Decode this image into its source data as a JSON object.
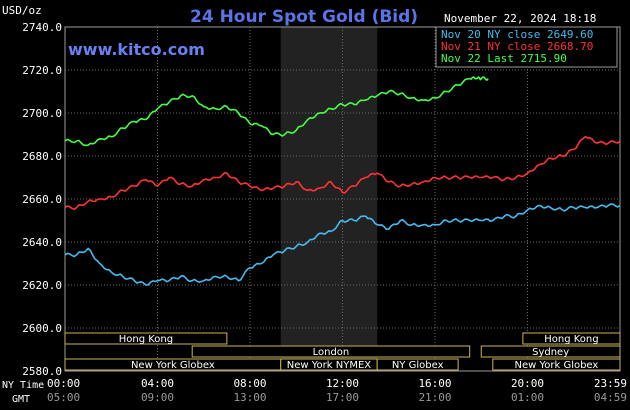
{
  "chart_data": {
    "type": "line",
    "title": "24 Hour Spot Gold (Bid)",
    "ylabel": "USD/oz",
    "timestamp": "November 22, 2024 18:18",
    "source": "www.kitco.com",
    "ylim": [
      2580,
      2740
    ],
    "yticks": [
      2580.0,
      2600.0,
      2620.0,
      2640.0,
      2660.0,
      2680.0,
      2700.0,
      2720.0,
      2740.0
    ],
    "xlim": [
      0,
      24
    ],
    "xticks_ny": [
      "00:00",
      "04:00",
      "08:00",
      "12:00",
      "16:00",
      "20:00",
      "23:59"
    ],
    "xticks_gmt": [
      "05:00",
      "09:00",
      "13:00",
      "17:00",
      "21:00",
      "01:00",
      "04:59"
    ],
    "xlabel_ny": "NY Time",
    "xlabel_gmt": "GMT",
    "nymex_session": [
      9.33,
      13.5
    ],
    "legend": [
      {
        "label": "Nov 20 NY close 2649.60",
        "color": "#44bbee"
      },
      {
        "label": "Nov 21 NY close 2668.70",
        "color": "#ff3333"
      },
      {
        "label": "Nov 22 Last 2715.90",
        "color": "#44ff44"
      }
    ],
    "series": [
      {
        "name": "Nov 20",
        "color": "#44bbee",
        "x": [
          0,
          0.5,
          1.0,
          1.5,
          2.0,
          2.5,
          3.0,
          3.5,
          4.0,
          4.5,
          5.0,
          5.5,
          6.0,
          6.5,
          7.0,
          7.5,
          8.0,
          8.5,
          9.0,
          9.5,
          10.0,
          10.5,
          11.0,
          11.5,
          12.0,
          12.5,
          13.0,
          13.5,
          14.0,
          14.5,
          15.0,
          15.5,
          16.0,
          16.5,
          17.0,
          17.5,
          18.0,
          18.5,
          19.0,
          19.5,
          20.0,
          20.5,
          21.0,
          21.5,
          22.0,
          22.5,
          23.0,
          23.5,
          24.0
        ],
        "y": [
          2634,
          2634,
          2637,
          2630,
          2626,
          2624,
          2622,
          2620,
          2622,
          2622,
          2624,
          2622,
          2622,
          2624,
          2624,
          2622,
          2628,
          2630,
          2634,
          2636,
          2638,
          2640,
          2644,
          2645,
          2650,
          2650,
          2652,
          2648,
          2646,
          2650,
          2648,
          2648,
          2648,
          2650,
          2650,
          2650,
          2650,
          2650,
          2652,
          2652,
          2655,
          2657,
          2656,
          2655,
          2656,
          2656,
          2656,
          2657,
          2657
        ]
      },
      {
        "name": "Nov 21",
        "color": "#ff3333",
        "x": [
          0,
          0.5,
          1.0,
          1.5,
          2.0,
          2.5,
          3.0,
          3.5,
          4.0,
          4.5,
          5.0,
          5.5,
          6.0,
          6.5,
          7.0,
          7.5,
          8.0,
          8.5,
          9.0,
          9.5,
          10.0,
          10.5,
          11.0,
          11.5,
          12.0,
          12.5,
          13.0,
          13.5,
          14.0,
          14.5,
          15.0,
          15.5,
          16.0,
          16.5,
          17.0,
          17.5,
          18.0,
          18.5,
          19.0,
          19.5,
          20.0,
          20.5,
          21.0,
          21.5,
          22.0,
          22.5,
          23.0,
          23.5,
          24.0
        ],
        "y": [
          2656,
          2656,
          2659,
          2660,
          2661,
          2664,
          2666,
          2669,
          2666,
          2670,
          2667,
          2666,
          2669,
          2670,
          2672,
          2668,
          2666,
          2664,
          2665,
          2666,
          2668,
          2664,
          2665,
          2668,
          2663,
          2666,
          2670,
          2672,
          2668,
          2666,
          2667,
          2668,
          2670,
          2670,
          2670,
          2670,
          2670,
          2670,
          2669,
          2670,
          2672,
          2676,
          2679,
          2680,
          2683,
          2689,
          2686,
          2686,
          2687
        ]
      },
      {
        "name": "Nov 22",
        "color": "#44ff44",
        "x": [
          0,
          0.5,
          1.0,
          1.5,
          2.0,
          2.5,
          3.0,
          3.5,
          4.0,
          4.5,
          5.0,
          5.5,
          6.0,
          6.5,
          7.0,
          7.5,
          8.0,
          8.5,
          9.0,
          9.5,
          10.0,
          10.5,
          11.0,
          11.5,
          12.0,
          12.5,
          13.0,
          13.5,
          14.0,
          14.5,
          15.0,
          15.5,
          16.0,
          16.5,
          17.0,
          17.5,
          17.8,
          18.0,
          18.3
        ],
        "y": [
          2687,
          2687,
          2685,
          2688,
          2689,
          2693,
          2696,
          2697,
          2702,
          2705,
          2708,
          2708,
          2703,
          2702,
          2703,
          2700,
          2695,
          2694,
          2690,
          2690,
          2692,
          2697,
          2700,
          2702,
          2704,
          2704,
          2706,
          2708,
          2710,
          2709,
          2707,
          2706,
          2707,
          2710,
          2713,
          2716,
          2716,
          2716,
          2716
        ]
      }
    ],
    "sessions": [
      {
        "label": "Hong Kong",
        "start": 0,
        "end": 7,
        "row": 0
      },
      {
        "label": "London",
        "start": 5.5,
        "end": 17.5,
        "row": 1
      },
      {
        "label": "New York Globex",
        "start": 0,
        "end": 9.33,
        "row": 2
      },
      {
        "label": "New York NYMEX",
        "start": 9.33,
        "end": 13.5,
        "row": 2
      },
      {
        "label": "NY Globex",
        "start": 13.5,
        "end": 17,
        "row": 2
      },
      {
        "label": "Hong Kong",
        "start": 19.8,
        "end": 24,
        "row": 0
      },
      {
        "label": "Sydney",
        "start": 18,
        "end": 24,
        "row": 1
      },
      {
        "label": "New York Globex",
        "start": 18.5,
        "end": 24,
        "row": 2
      }
    ]
  }
}
